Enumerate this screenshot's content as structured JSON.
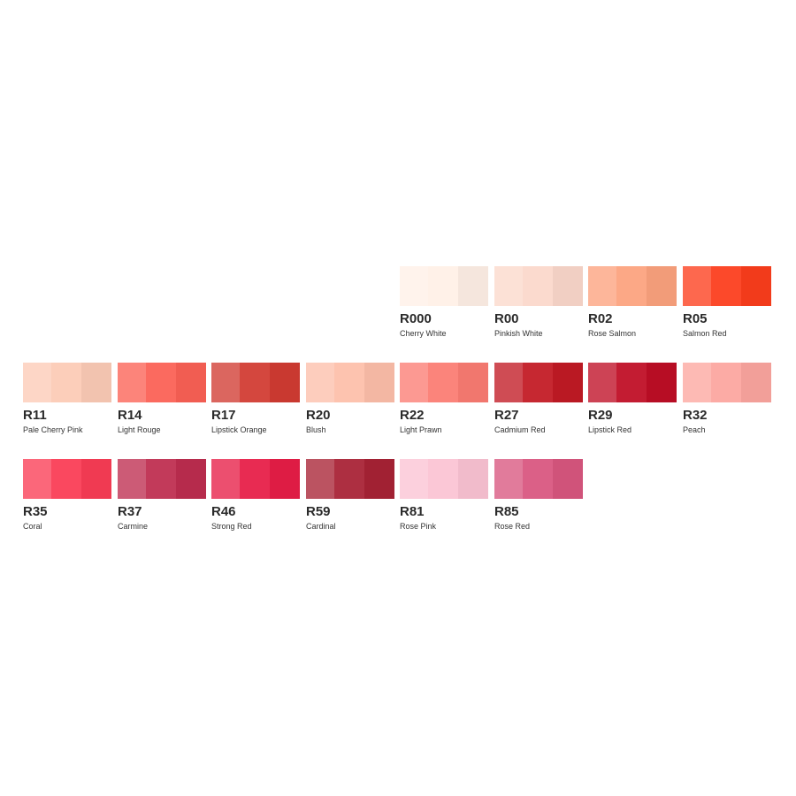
{
  "swatches": [
    {
      "row": 0,
      "col": 4,
      "code": "R000",
      "name": "Cherry White",
      "color": "#fff0e6"
    },
    {
      "row": 0,
      "col": 5,
      "code": "R00",
      "name": "Pinkish White",
      "color": "#fbd8cb"
    },
    {
      "row": 0,
      "col": 6,
      "code": "R02",
      "name": "Rose Salmon",
      "color": "#fca27e"
    },
    {
      "row": 0,
      "col": 7,
      "code": "R05",
      "name": "Salmon Red",
      "color": "#fc3d1c"
    },
    {
      "row": 1,
      "col": 0,
      "code": "R11",
      "name": "Pale Cherry Pink",
      "color": "#fccbb6"
    },
    {
      "row": 1,
      "col": 1,
      "code": "R14",
      "name": "Light Rouge",
      "color": "#fb6155"
    },
    {
      "row": 1,
      "col": 2,
      "code": "R17",
      "name": "Lipstick Orange",
      "color": "#d13b32"
    },
    {
      "row": 1,
      "col": 3,
      "code": "R20",
      "name": "Blush",
      "color": "#fdbfaa"
    },
    {
      "row": 1,
      "col": 4,
      "code": "R22",
      "name": "Light Prawn",
      "color": "#fb7c73"
    },
    {
      "row": 1,
      "col": 5,
      "code": "R27",
      "name": "Cadmium Red",
      "color": "#c21a24"
    },
    {
      "row": 1,
      "col": 6,
      "code": "R29",
      "name": "Lipstick Red",
      "color": "#bf0e25"
    },
    {
      "row": 1,
      "col": 7,
      "code": "R32",
      "name": "Peach",
      "color": "#fca69f"
    },
    {
      "row": 2,
      "col": 0,
      "code": "R35",
      "name": "Coral",
      "color": "#fa3c55"
    },
    {
      "row": 2,
      "col": 1,
      "code": "R37",
      "name": "Carmine",
      "color": "#be2d4f"
    },
    {
      "row": 2,
      "col": 2,
      "code": "R46",
      "name": "Strong Red",
      "color": "#e71d47"
    },
    {
      "row": 2,
      "col": 3,
      "code": "R59",
      "name": "Cardinal",
      "color": "#a82235"
    },
    {
      "row": 2,
      "col": 4,
      "code": "R81",
      "name": "Rose Pink",
      "color": "#fbc3d3"
    },
    {
      "row": 2,
      "col": 5,
      "code": "R85",
      "name": "Rose Red",
      "color": "#d9567f"
    }
  ]
}
